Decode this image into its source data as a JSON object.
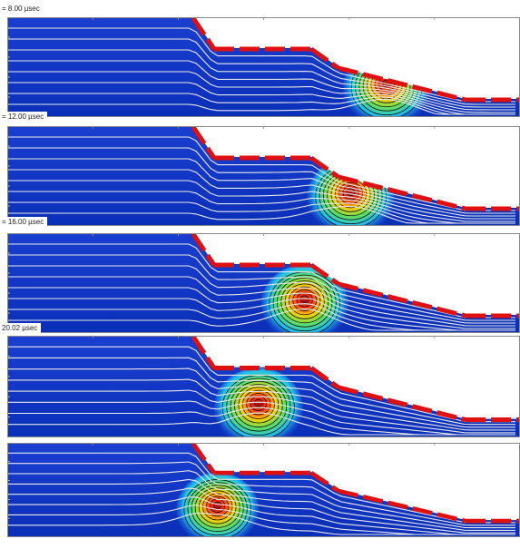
{
  "frames": [
    {
      "label": "= 8.00 µsec"
    },
    {
      "label": "= 12.00 µsec"
    },
    {
      "label": "= 16.00 µsec"
    },
    {
      "label": "20.02 µsec"
    },
    {
      "label": ""
    }
  ],
  "colors": {
    "background_field": "#0a2fb8",
    "streamline": "#e8e8e8",
    "contour": "#111111",
    "wall": "#ffffff",
    "heated_segment": "#e01010",
    "hot_core": "#c81010"
  },
  "bubble_centers_relative": [
    0.74,
    0.67,
    0.58,
    0.49,
    0.41
  ]
}
